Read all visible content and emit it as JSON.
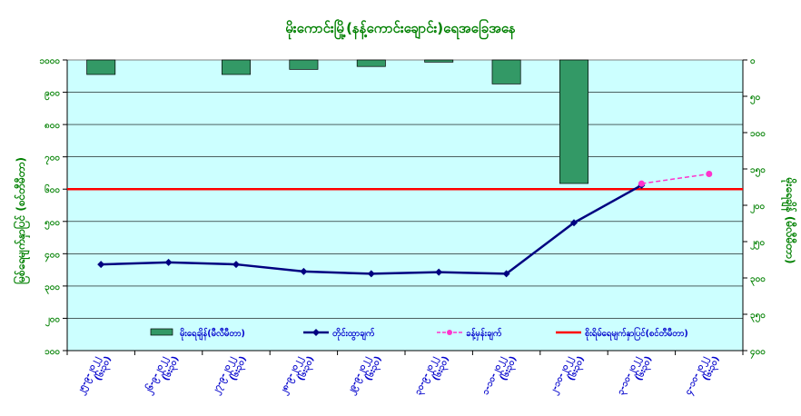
{
  "chart_data": {
    "type": "bar+line",
    "title": "မိုးကောင်းမြို့(နန့်ကောင်းချောင်း)ရေအခြေအနေ",
    "left_axis": {
      "label": "မြစ်ရေမျက်နှာပြင် (စင်တီမီတာ)",
      "ylim": [
        100,
        1000
      ],
      "ticks": [
        100,
        200,
        300,
        400,
        500,
        600,
        700,
        800,
        900,
        1000
      ],
      "tick_labels": [
        "၁၀၀",
        "၂၀၀",
        "၃၀၀",
        "၄၀၀",
        "၅၀၀",
        "၆၀၀",
        "၇၀၀",
        "၈၀၀",
        "၉၀၀",
        "၁၀၀၀"
      ]
    },
    "right_axis": {
      "label": "မိုးရေချိန် (မီလီမီတာ)",
      "ylim": [
        0,
        400
      ],
      "inverted": true,
      "ticks": [
        0,
        50,
        100,
        150,
        200,
        250,
        300,
        350,
        400
      ],
      "tick_labels": [
        "၀",
        "၅၀",
        "၁၀၀",
        "၁၅၀",
        "၂၀၀",
        "၂၅၀",
        "၃၀၀",
        "၃၅၀",
        "၄၀၀"
      ]
    },
    "categories": [
      [
        "၂၅-၉-၂၀၂၂",
        "(၆း၃၀)"
      ],
      [
        "၂၆-၉-၂၀၂၂",
        "(၆း၃၀)"
      ],
      [
        "၂၇-၉-၂၀၂၂",
        "(၆း၃၀)"
      ],
      [
        "၂၈-၉-၂၀၂၂",
        "(၆း၃၀)"
      ],
      [
        "၂၉-၉-၂၀၂၂",
        "(၆း၃၀)"
      ],
      [
        "၃၀-၉-၂၀၂၂",
        "(၆း၃၀)"
      ],
      [
        "၁-၁၀-၂၀၂၂",
        "(၆း၃၀)"
      ],
      [
        "၂-၁၀-၂၀၂၂",
        "(၆း၃၀)"
      ],
      [
        "၃-၁၀-၂၀၂၂",
        "(၆း၃၀)"
      ],
      [
        "၄-၁၀-၂၀၂၂",
        "(၆း၃၀)"
      ]
    ],
    "series": [
      {
        "name": "မိုးရေချိန်(မီလီမီတာ)",
        "type": "bar",
        "axis": "right",
        "color": "#339966",
        "values": [
          20,
          0,
          20,
          13,
          9,
          3,
          33,
          170,
          null,
          null
        ]
      },
      {
        "name": "တိုင်းထွာချက်",
        "type": "line",
        "axis": "left",
        "color": "#000080",
        "values": [
          367,
          373,
          367,
          345,
          338,
          343,
          338,
          496,
          612,
          null
        ]
      },
      {
        "name": "ခန့်မှန်းချက်",
        "type": "line-dashed",
        "axis": "left",
        "color": "#ff33cc",
        "values": [
          null,
          null,
          null,
          null,
          null,
          null,
          null,
          null,
          617,
          647
        ]
      },
      {
        "name": "စိုးရိမ်ရေမျက်နှာပြင်(စင်တီမီတာ)",
        "type": "hline",
        "axis": "left",
        "color": "#ff0000",
        "value": 600
      }
    ],
    "grid": true,
    "legend": "bottom-inside",
    "plot_background": "#ccffff"
  }
}
